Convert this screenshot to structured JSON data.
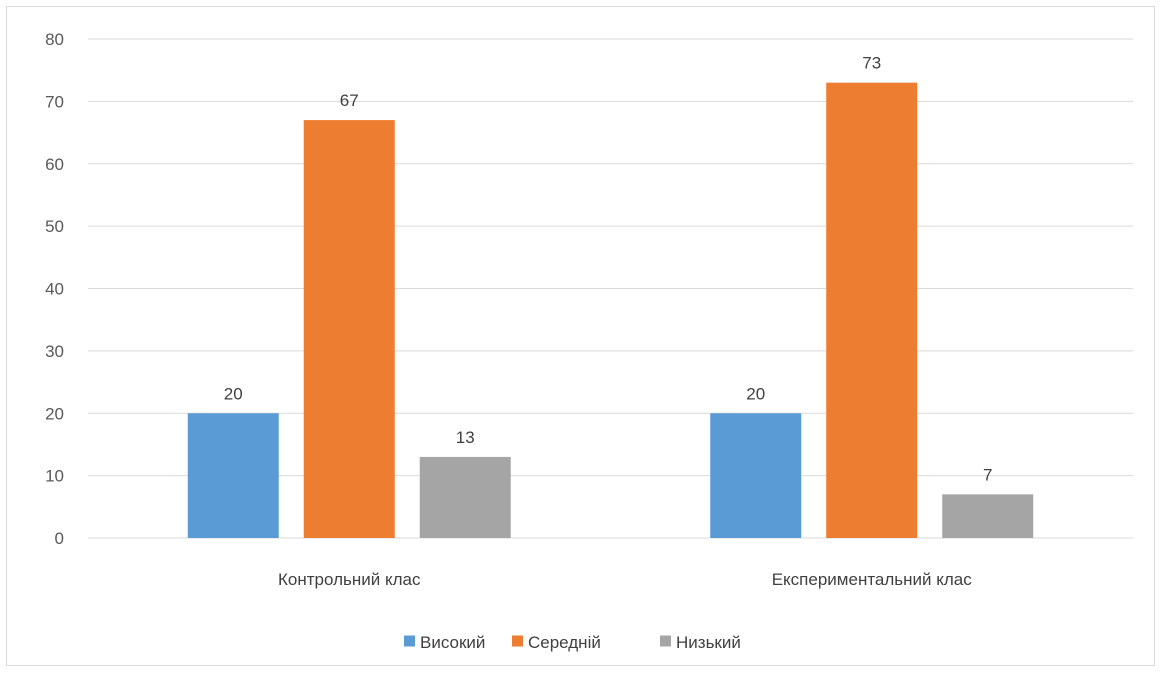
{
  "chart_data": {
    "type": "bar",
    "categories": [
      "Контрольний клас",
      "Експериментальний клас"
    ],
    "series": [
      {
        "name": "Високий",
        "values": [
          20,
          20
        ],
        "color": "#5b9bd5"
      },
      {
        "name": "Середній",
        "values": [
          67,
          73
        ],
        "color": "#ed7d31"
      },
      {
        "name": "Низький",
        "values": [
          13,
          7
        ],
        "color": "#a5a5a5"
      }
    ],
    "title": "",
    "xlabel": "",
    "ylabel": "",
    "ylim": [
      0,
      80
    ],
    "yticks": [
      "0",
      "10",
      "20",
      "30",
      "40",
      "50",
      "60",
      "70",
      "80"
    ],
    "grid": true,
    "legend_position": "bottom",
    "data_labels": true
  }
}
